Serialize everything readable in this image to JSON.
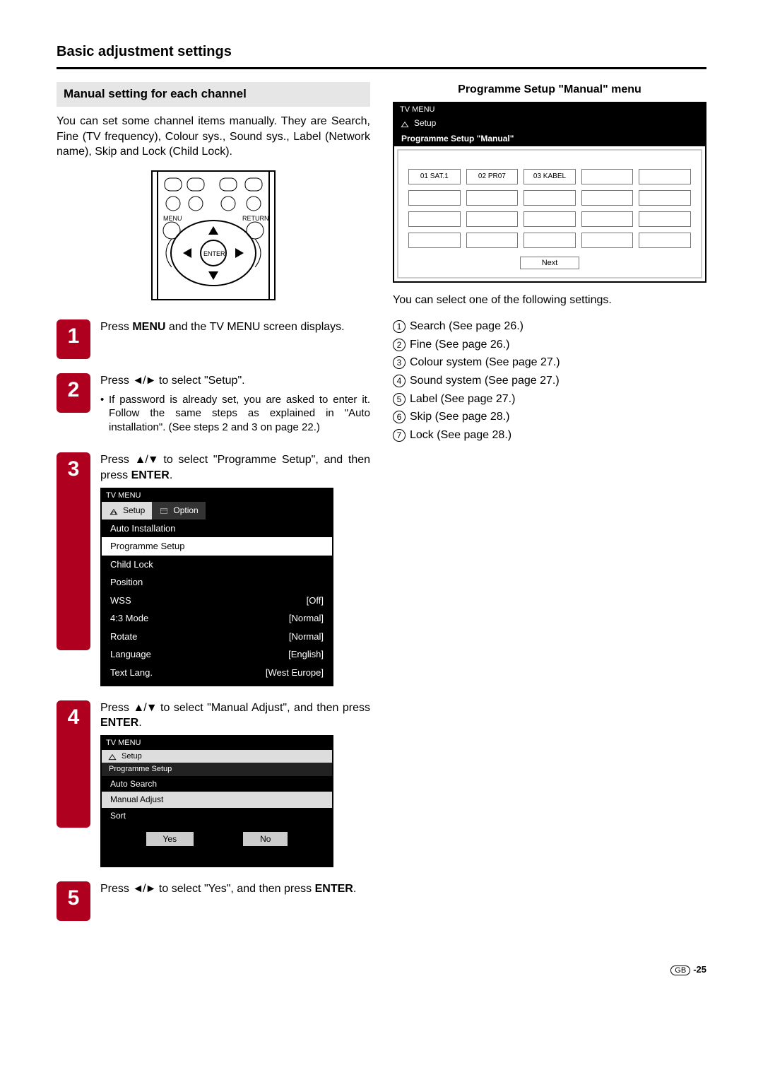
{
  "section_title": "Basic adjustment settings",
  "sub_heading": "Manual setting for each channel",
  "intro": "You can set some channel items manually. They are Search, Fine (TV frequency), Colour sys., Sound sys., Label (Network name), Skip and Lock (Child Lock).",
  "remote": {
    "labels": {
      "menu": "MENU",
      "return": "RETURN",
      "enter": "ENTER"
    }
  },
  "steps": [
    {
      "n": "1",
      "text_parts": [
        "Press ",
        "MENU",
        " and the TV MENU screen displays."
      ]
    },
    {
      "n": "2",
      "text_parts": [
        "Press ",
        "◄/►",
        " to select \"Setup\"."
      ],
      "bullet": "If password is already set, you are asked to enter it. Follow the same steps as explained in \"Auto installation\". (See steps 2 and 3 on page 22.)"
    },
    {
      "n": "3",
      "text_parts": [
        "Press ",
        "▲/▼",
        " to select \"Programme Setup\", and then press ",
        "ENTER",
        "."
      ],
      "menu": {
        "hdr": "TV MENU",
        "tabs": [
          "Setup",
          "Option"
        ],
        "rows": [
          {
            "label": "Auto Installation",
            "val": ""
          },
          {
            "label": "Programme Setup",
            "val": "",
            "sel": true
          },
          {
            "label": "Child Lock",
            "val": ""
          },
          {
            "label": "Position",
            "val": ""
          },
          {
            "label": "WSS",
            "val": "[Off]"
          },
          {
            "label": "4:3 Mode",
            "val": "[Normal]"
          },
          {
            "label": "Rotate",
            "val": "[Normal]"
          },
          {
            "label": "Language",
            "val": "[English]"
          },
          {
            "label": "Text Lang.",
            "val": "[West Europe]"
          }
        ]
      }
    },
    {
      "n": "4",
      "text_parts": [
        "Press ",
        "▲/▼",
        " to select \"Manual Adjust\", and then press ",
        "ENTER",
        "."
      ],
      "menu_sm": {
        "hdr": "TV MENU",
        "tab": "Setup",
        "sub": "Programme Setup",
        "opts": [
          {
            "label": "Auto Search"
          },
          {
            "label": "Manual Adjust",
            "sel": true
          },
          {
            "label": "Sort"
          }
        ],
        "yes": "Yes",
        "no": "No"
      }
    },
    {
      "n": "5",
      "text_parts": [
        "Press ",
        "◄/►",
        " to select \"Yes\", and then press ",
        "ENTER",
        "."
      ]
    }
  ],
  "right": {
    "title": "Programme Setup \"Manual\" menu",
    "menu": {
      "hdr": "TV MENU",
      "tab": "Setup",
      "sub": "Programme Setup \"Manual\"",
      "cells": [
        "01  SAT.1",
        "02  PR07",
        "03  KABEL",
        "",
        "",
        "",
        "",
        "",
        "",
        "",
        "",
        "",
        "",
        "",
        "",
        "",
        "",
        "",
        "",
        ""
      ],
      "next": "Next"
    },
    "after": "You can select one of the following settings.",
    "list": [
      "Search (See page 26.)",
      "Fine (See page 26.)",
      "Colour system (See page 27.)",
      "Sound system (See page 27.)",
      "Label (See page 27.)",
      "Skip (See page 28.)",
      "Lock (See page 28.)"
    ]
  },
  "footer": {
    "gb": "GB",
    "page": "-25"
  },
  "colors": {
    "accent": "#b00020",
    "panel_grey": "#e6e6e6",
    "menu_bg": "#000000",
    "menu_sel": "#ffffff"
  }
}
